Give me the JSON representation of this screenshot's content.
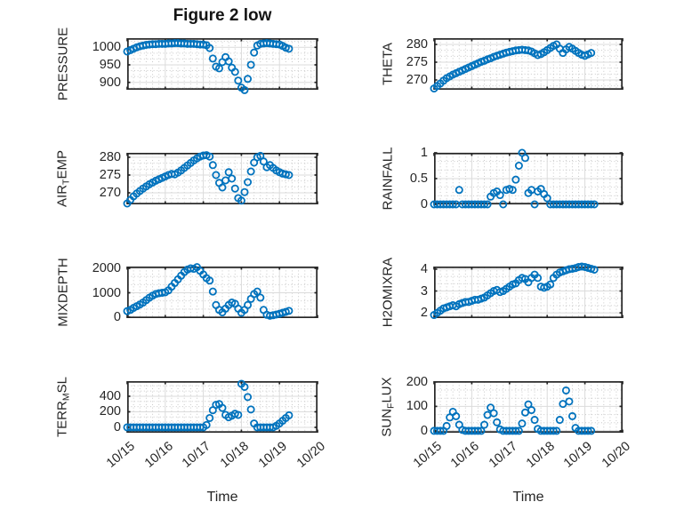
{
  "figure": {
    "title": "Figure 2 low"
  },
  "x_axis": {
    "label": "Time",
    "tick_labels": [
      "10/15",
      "10/16",
      "10/17",
      "10/18",
      "10/19",
      "10/20"
    ],
    "lim_days": [
      0,
      5
    ]
  },
  "style": {
    "marker_color": "#0072BD",
    "axis_color": "#262626",
    "grid_major_color": "#dbdbdb",
    "grid_minor_color": "#c9c9c9"
  },
  "chart_data": [
    {
      "id": "pressure",
      "type": "scatter",
      "ylabel": "PRESSURE",
      "yticks": [
        900,
        950,
        1000
      ],
      "ylim": [
        879,
        1026
      ],
      "t_start": 0,
      "t_step": 0.083333,
      "values": [
        988,
        992,
        996,
        1000,
        1003,
        1005,
        1007,
        1008,
        1009,
        1009,
        1010,
        1010,
        1010,
        1011,
        1011,
        1012,
        1012,
        1011,
        1011,
        1010,
        1010,
        1010,
        1009,
        1008,
        1008,
        1006,
        998,
        968,
        945,
        940,
        958,
        972,
        960,
        942,
        930,
        905,
        885,
        878,
        910,
        950,
        985,
        1005,
        1010,
        1011,
        1012,
        1011,
        1010,
        1009,
        1008,
        1004,
        999,
        996
      ]
    },
    {
      "id": "theta",
      "type": "scatter",
      "ylabel": "THETA",
      "yticks": [
        270,
        275,
        280
      ],
      "ylim": [
        267.25,
        281.75
      ],
      "t_start": 0,
      "t_step": 0.083333,
      "values": [
        267.6,
        268.3,
        269,
        269.8,
        270.5,
        271,
        271.5,
        271.9,
        272.3,
        272.7,
        273.1,
        273.5,
        273.9,
        274.3,
        274.7,
        275.1,
        275.4,
        275.8,
        276.1,
        276.5,
        276.8,
        277.1,
        277.4,
        277.7,
        277.9,
        278.1,
        278.3,
        278.4,
        278.5,
        278.4,
        278.3,
        278,
        277.5,
        277,
        277.3,
        277.8,
        278.4,
        279,
        279.6,
        280,
        278.8,
        277.6,
        278.6,
        279.3,
        278.8,
        278.2,
        277.6,
        277.1,
        276.8,
        277.2,
        277.6
      ]
    },
    {
      "id": "air-temp",
      "type": "scatter",
      "ylabel": "AIR_TEMP",
      "yticks": [
        270,
        275,
        280
      ],
      "ylim": [
        266.75,
        281.25
      ],
      "t_start": 0,
      "t_step": 0.083333,
      "values": [
        267,
        268,
        269,
        269.8,
        270.5,
        271.2,
        271.8,
        272.4,
        272.9,
        273.4,
        273.8,
        274.2,
        274.6,
        275,
        275.3,
        275.2,
        275.7,
        276.3,
        277,
        277.7,
        278.4,
        279.1,
        279.7,
        280.2,
        280.5,
        280.6,
        280.2,
        277.8,
        275,
        272.8,
        271.5,
        273.5,
        275.8,
        274,
        271.2,
        268.5,
        267.8,
        270.2,
        273,
        276,
        278.5,
        280,
        280.4,
        278.8,
        277.2,
        277.8,
        277,
        276.3,
        275.8,
        275.4,
        275.2,
        275
      ]
    },
    {
      "id": "rainfall",
      "type": "scatter",
      "ylabel": "RAINFALL",
      "yticks": [
        0,
        0.5,
        1
      ],
      "ylim": [
        0,
        1
      ],
      "t_start": 0,
      "t_step": 0.083333,
      "values": [
        0,
        0,
        0,
        0,
        0,
        0,
        0,
        0,
        0.28,
        0,
        0,
        0,
        0,
        0,
        0,
        0,
        0,
        0,
        0.15,
        0.22,
        0.25,
        0.18,
        0,
        0.28,
        0.3,
        0.28,
        0.48,
        0.75,
        1,
        0.9,
        0.22,
        0.28,
        0,
        0.25,
        0.3,
        0.2,
        0.12,
        0,
        0,
        0,
        0,
        0,
        0,
        0,
        0,
        0,
        0,
        0,
        0,
        0,
        0,
        0
      ]
    },
    {
      "id": "mixdepth",
      "type": "scatter",
      "ylabel": "MIXDEPTH",
      "yticks": [
        0,
        1000,
        2000
      ],
      "ylim": [
        -36,
        2073
      ],
      "t_start": 0,
      "t_step": 0.083333,
      "values": [
        250,
        300,
        380,
        450,
        520,
        600,
        700,
        800,
        880,
        950,
        980,
        1000,
        1020,
        1100,
        1250,
        1400,
        1550,
        1700,
        1850,
        1950,
        2000,
        1980,
        2050,
        1900,
        1750,
        1600,
        1500,
        1050,
        500,
        300,
        200,
        350,
        500,
        600,
        550,
        350,
        180,
        300,
        500,
        750,
        950,
        1050,
        800,
        300,
        100,
        60,
        80,
        110,
        140,
        180,
        220,
        260
      ]
    },
    {
      "id": "h2omixra",
      "type": "scatter",
      "ylabel": "H2OMIXRA",
      "yticks": [
        2,
        3,
        4
      ],
      "ylim": [
        1.76,
        4.12
      ],
      "t_start": 0,
      "t_step": 0.083333,
      "values": [
        1.9,
        2,
        2.1,
        2.2,
        2.25,
        2.3,
        2.35,
        2.3,
        2.4,
        2.45,
        2.5,
        2.5,
        2.55,
        2.6,
        2.6,
        2.65,
        2.7,
        2.8,
        2.9,
        3,
        3.05,
        2.95,
        3,
        3.1,
        3.2,
        3.3,
        3.35,
        3.5,
        3.6,
        3.55,
        3.4,
        3.6,
        3.75,
        3.6,
        3.2,
        3.15,
        3.2,
        3.3,
        3.6,
        3.75,
        3.85,
        3.9,
        3.95,
        4,
        4.02,
        4.05,
        4.1,
        4.12,
        4.1,
        4.06,
        4.02,
        3.98
      ]
    },
    {
      "id": "terr-msl",
      "type": "scatter",
      "ylabel": "TERR_MSL",
      "yticks": [
        0,
        200,
        400
      ],
      "ylim": [
        -69,
        594
      ],
      "t_start": 0,
      "t_step": 0.083333,
      "values": [
        0,
        0,
        0,
        0,
        0,
        0,
        0,
        0,
        0,
        0,
        0,
        0,
        0,
        0,
        0,
        0,
        0,
        0,
        0,
        0,
        0,
        0,
        0,
        0,
        0,
        30,
        120,
        220,
        290,
        300,
        250,
        160,
        130,
        150,
        175,
        160,
        560,
        520,
        390,
        230,
        50,
        0,
        0,
        0,
        0,
        0,
        0,
        20,
        50,
        85,
        120,
        155
      ]
    },
    {
      "id": "sun-flux",
      "type": "scatter",
      "ylabel": "SUN_FLUX",
      "yticks": [
        0,
        100,
        200
      ],
      "ylim": [
        -7.5,
        203
      ],
      "t_start": 0,
      "t_step": 0.083333,
      "values": [
        0,
        0,
        0,
        0,
        20,
        55,
        78,
        60,
        25,
        4,
        0,
        0,
        0,
        0,
        0,
        0,
        25,
        65,
        95,
        72,
        35,
        6,
        0,
        0,
        0,
        0,
        0,
        0,
        30,
        75,
        108,
        85,
        45,
        8,
        0,
        0,
        0,
        0,
        0,
        0,
        45,
        110,
        165,
        120,
        60,
        12,
        0,
        0,
        0,
        0,
        0
      ]
    }
  ]
}
